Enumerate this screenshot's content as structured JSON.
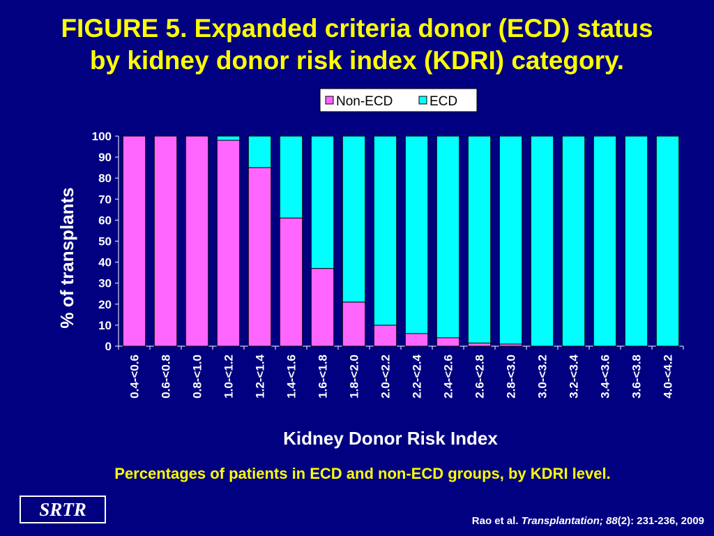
{
  "title": {
    "line1": "FIGURE 5. Expanded criteria donor (ECD) status",
    "line2": "by kidney donor risk index (KDRI) category."
  },
  "caption": "Percentages of patients in ECD and non-ECD groups, by KDRI level.",
  "logo_text": "SRTR",
  "citation": {
    "authors": "Rao et al. ",
    "journal": "Transplantation; 88",
    "rest": "(2): 231-236, 2009"
  },
  "colors": {
    "background": "#000080",
    "title": "#FFFF00",
    "non_ecd": "#FF66FF",
    "ecd": "#00FFFF",
    "text": "#FFFFFF"
  },
  "chart_data": {
    "type": "bar",
    "stacked": true,
    "xlabel": "Kidney Donor Risk Index",
    "ylabel": "% of transplants",
    "ylim": [
      0,
      100
    ],
    "yticks": [
      0,
      10,
      20,
      30,
      40,
      50,
      60,
      70,
      80,
      90,
      100
    ],
    "legend": "top",
    "categories": [
      "0.4-<0.6",
      "0.6-<0.8",
      "0.8-<1.0",
      "1.0-<1.2",
      "1.2-<1.4",
      "1.4-<1.6",
      "1.6-<1.8",
      "1.8-<2.0",
      "2.0-<2.2",
      "2.2-<2.4",
      "2.4-<2.6",
      "2.6-<2.8",
      "2.8-<3.0",
      "3.0-<3.2",
      "3.2-<3.4",
      "3.4-<3.6",
      "3.6-<3.8",
      "4.0-<4.2"
    ],
    "series": [
      {
        "name": "Non-ECD",
        "color": "#FF66FF",
        "values": [
          100,
          100,
          100,
          98,
          85,
          61,
          37,
          21,
          10,
          6,
          4,
          1.5,
          1,
          0,
          0,
          0,
          0,
          0
        ]
      },
      {
        "name": "ECD",
        "color": "#00FFFF",
        "values": [
          0,
          0,
          0,
          2,
          15,
          39,
          63,
          79,
          90,
          94,
          96,
          98.5,
          99,
          100,
          100,
          100,
          100,
          100
        ]
      }
    ]
  }
}
